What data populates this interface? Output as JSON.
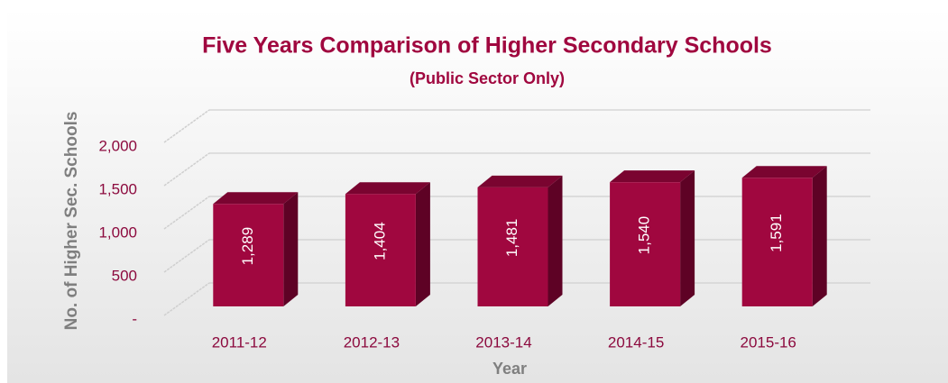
{
  "chart_data": {
    "type": "bar",
    "title": "Five Years Comparison of Higher Secondary Schools",
    "subtitle": "(Public Sector Only)",
    "x_label": "Year",
    "y_label": "No. of Higher Sec. Schools",
    "categories": [
      "2011-12",
      "2012-13",
      "2013-14",
      "2014-15",
      "2015-16"
    ],
    "values": [
      1289,
      1404,
      1481,
      1540,
      1591
    ],
    "value_labels": [
      "1,289",
      "1,404",
      "1,481",
      "1,540",
      "1,591"
    ],
    "color": "#a0073f",
    "ylim": [
      0,
      2000
    ],
    "yticks": [
      {
        "value": 0,
        "label": "-"
      },
      500,
      {
        "value": 1000,
        "label": "1,000"
      },
      {
        "value": 1500,
        "label": "1,500"
      },
      {
        "value": 2000,
        "label": "2,000"
      }
    ],
    "grid": true
  }
}
